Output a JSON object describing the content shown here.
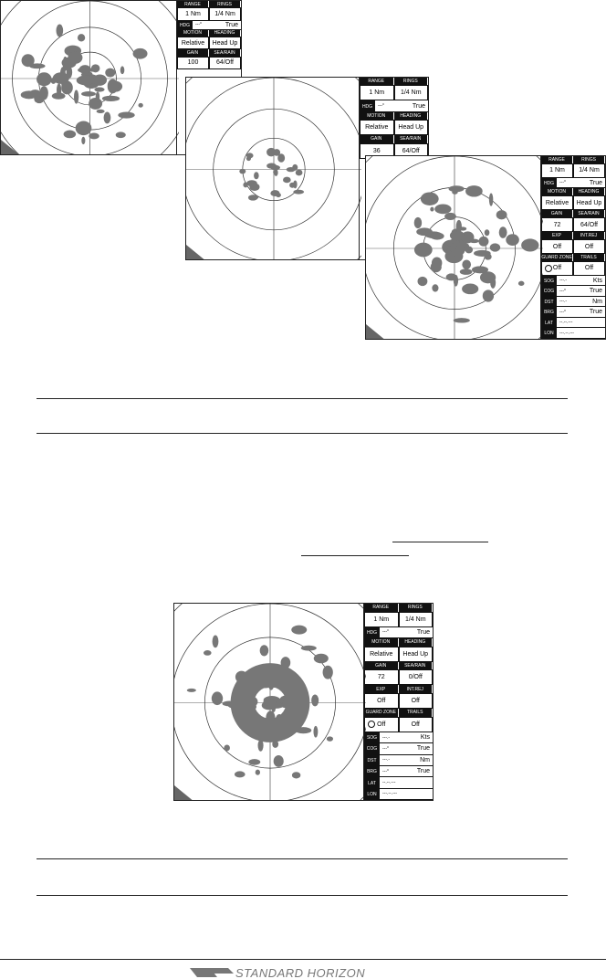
{
  "screens": [
    {
      "rows": [
        {
          "headers": [
            "RANGE",
            "RINGS"
          ]
        },
        {
          "values": [
            "1 Nm",
            "1/4 Nm"
          ]
        },
        {
          "label": "HDG",
          "value": "---°",
          "unit": "True"
        },
        {
          "headers": [
            "MOTION",
            "HEADING"
          ]
        },
        {
          "values": [
            "Relative",
            "Head Up"
          ]
        },
        {
          "headers": [
            "GAIN",
            "SEA/RAIN"
          ]
        },
        {
          "values": [
            "100",
            "64/Off"
          ]
        }
      ]
    },
    {
      "rows": [
        {
          "headers": [
            "RANGE",
            "RINGS"
          ]
        },
        {
          "values": [
            "1 Nm",
            "1/4 Nm"
          ]
        },
        {
          "label": "HDG",
          "value": "---°",
          "unit": "True"
        },
        {
          "headers": [
            "MOTION",
            "HEADING"
          ]
        },
        {
          "values": [
            "Relative",
            "Head Up"
          ]
        },
        {
          "headers": [
            "GAIN",
            "SEA/RAIN"
          ]
        },
        {
          "values": [
            "36",
            "64/Off"
          ]
        }
      ]
    },
    {
      "rows": [
        {
          "headers": [
            "RANGE",
            "RINGS"
          ]
        },
        {
          "values": [
            "1 Nm",
            "1/4 Nm"
          ]
        },
        {
          "label": "HDG",
          "value": "---°",
          "unit": "True"
        },
        {
          "headers": [
            "MOTION",
            "HEADING"
          ]
        },
        {
          "values": [
            "Relative",
            "Head Up"
          ]
        },
        {
          "headers": [
            "GAIN",
            "SEA/RAIN"
          ]
        },
        {
          "values": [
            "72",
            "64/Off"
          ]
        },
        {
          "headers": [
            "EXP",
            "INT.REJ"
          ]
        },
        {
          "values": [
            "Off",
            "Off"
          ]
        },
        {
          "headers": [
            "GUARD ZONE",
            "TRAILS"
          ]
        },
        {
          "values": [
            "Off",
            "Off"
          ]
        },
        {
          "label": "SOG",
          "value": "---.-",
          "unit": "Kts"
        },
        {
          "label": "COG",
          "value": "---°",
          "unit": "True"
        },
        {
          "label": "DST",
          "value": "---.-",
          "unit": "Nm"
        },
        {
          "label": "BRG",
          "value": "---°",
          "unit": "True"
        },
        {
          "label": "LAT",
          "value": "--.--.---"
        },
        {
          "label": "LON",
          "value": "---.--.---"
        }
      ]
    },
    {
      "rows": [
        {
          "headers": [
            "RANGE",
            "RINGS"
          ]
        },
        {
          "values": [
            "1 Nm",
            "1/4 Nm"
          ]
        },
        {
          "label": "HDG",
          "value": "---°",
          "unit": "True"
        },
        {
          "headers": [
            "MOTION",
            "HEADING"
          ]
        },
        {
          "values": [
            "Relative",
            "Head Up"
          ]
        },
        {
          "headers": [
            "GAIN",
            "SEA/RAIN"
          ]
        },
        {
          "values": [
            "72",
            "0/Off"
          ]
        },
        {
          "headers": [
            "EXP",
            "INT.REJ"
          ]
        },
        {
          "values": [
            "Off",
            "Off"
          ]
        },
        {
          "headers": [
            "GUARD ZONE",
            "TRAILS"
          ]
        },
        {
          "values": [
            "Off",
            "Off"
          ]
        },
        {
          "label": "SOG",
          "value": "---.-",
          "unit": "Kts"
        },
        {
          "label": "COG",
          "value": "---°",
          "unit": "True"
        },
        {
          "label": "DST",
          "value": "---.-",
          "unit": "Nm"
        },
        {
          "label": "BRG",
          "value": "---°",
          "unit": "True"
        },
        {
          "label": "LAT",
          "value": "--.--.---"
        },
        {
          "label": "LON",
          "value": "---.--.---"
        }
      ]
    }
  ],
  "footer": {
    "brand": "STANDARD HORIZON"
  }
}
